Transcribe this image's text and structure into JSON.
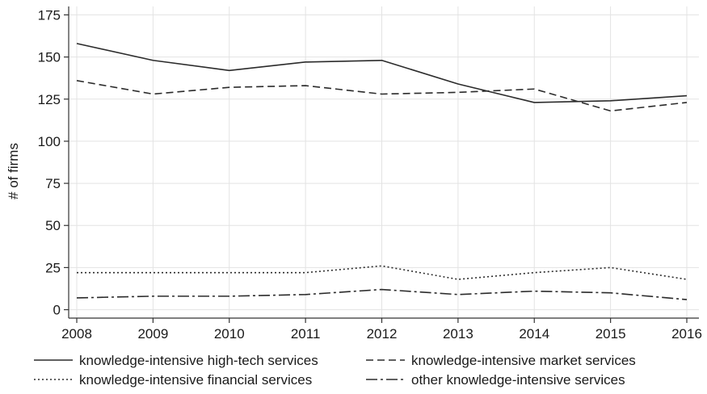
{
  "chart_data": {
    "type": "line",
    "title": "",
    "xlabel": "",
    "ylabel": "# of firms",
    "x": [
      2008,
      2009,
      2010,
      2011,
      2012,
      2013,
      2014,
      2015,
      2016
    ],
    "xlim": [
      2008,
      2016
    ],
    "ylim": [
      -5,
      180
    ],
    "yticks": [
      0,
      25,
      50,
      75,
      100,
      125,
      150,
      175
    ],
    "grid": true,
    "legend_position": "bottom",
    "series": [
      {
        "name": "knowledge-intensive high-tech services",
        "style": "solid",
        "color": "#2b2b2b",
        "values": [
          158,
          148,
          142,
          147,
          148,
          134,
          123,
          124,
          127
        ]
      },
      {
        "name": "knowledge-intensive market services",
        "style": "dashed",
        "color": "#2b2b2b",
        "values": [
          136,
          128,
          132,
          133,
          128,
          129,
          131,
          118,
          123
        ]
      },
      {
        "name": "knowledge-intensive financial services",
        "style": "dotted",
        "color": "#2b2b2b",
        "values": [
          22,
          22,
          22,
          22,
          26,
          18,
          22,
          25,
          18
        ]
      },
      {
        "name": "other knowledge-intensive services",
        "style": "dashdot",
        "color": "#2b2b2b",
        "values": [
          7,
          8,
          8,
          9,
          12,
          9,
          11,
          10,
          6
        ]
      }
    ]
  }
}
